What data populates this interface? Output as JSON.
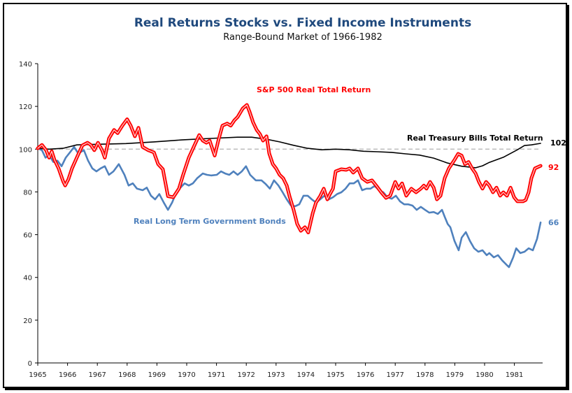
{
  "chart_data": {
    "type": "line",
    "title": "Real Returns Stocks vs. Fixed Income Instruments",
    "subtitle": "Range-Bound Market of 1966-1982",
    "xlabel": "",
    "ylabel": "",
    "ylim": [
      0,
      140
    ],
    "xlim": [
      1965,
      1981.88
    ],
    "y_ticks": [
      "0",
      "20",
      "40",
      "60",
      "80",
      "100",
      "120",
      "140"
    ],
    "x_ticks": [
      "1965",
      "1966",
      "1967",
      "1968",
      "1969",
      "1970",
      "1971",
      "1972",
      "1973",
      "1974",
      "1975",
      "1976",
      "1977",
      "1978",
      "1979",
      "1980",
      "1981"
    ],
    "grid": false,
    "reference_line": {
      "y": 100,
      "style": "dashed",
      "color": "#b0b0b0"
    },
    "colors": {
      "sp500": "#ff0000",
      "bonds": "#4f81bd",
      "tbills": "#000000",
      "title": "#1f497d"
    },
    "series": [
      {
        "name": "S&P 500 Real Total Return",
        "key": "sp500",
        "end_label": "92",
        "points": [
          [
            1965.0,
            100.4
          ],
          [
            1965.14,
            102
          ],
          [
            1965.28,
            99.5
          ],
          [
            1965.38,
            96
          ],
          [
            1965.47,
            99
          ],
          [
            1965.56,
            95
          ],
          [
            1965.7,
            91
          ],
          [
            1965.85,
            85
          ],
          [
            1965.92,
            83
          ],
          [
            1966.03,
            86
          ],
          [
            1966.15,
            91
          ],
          [
            1966.31,
            96
          ],
          [
            1966.5,
            101.8
          ],
          [
            1966.67,
            103
          ],
          [
            1966.78,
            102
          ],
          [
            1966.9,
            99.5
          ],
          [
            1967.02,
            103
          ],
          [
            1967.16,
            99.5
          ],
          [
            1967.25,
            96
          ],
          [
            1967.39,
            105
          ],
          [
            1967.56,
            109
          ],
          [
            1967.68,
            107.5
          ],
          [
            1967.84,
            111
          ],
          [
            1968.0,
            114
          ],
          [
            1968.12,
            111
          ],
          [
            1968.26,
            106
          ],
          [
            1968.38,
            110
          ],
          [
            1968.52,
            101
          ],
          [
            1968.71,
            99.5
          ],
          [
            1968.9,
            98.5
          ],
          [
            1969.04,
            93
          ],
          [
            1969.2,
            90.6
          ],
          [
            1969.37,
            78
          ],
          [
            1969.55,
            77.5
          ],
          [
            1969.74,
            81.5
          ],
          [
            1969.88,
            88
          ],
          [
            1970.07,
            96
          ],
          [
            1970.26,
            101.8
          ],
          [
            1970.42,
            106.6
          ],
          [
            1970.54,
            104
          ],
          [
            1970.66,
            103
          ],
          [
            1970.77,
            104
          ],
          [
            1970.94,
            97
          ],
          [
            1971.06,
            104
          ],
          [
            1971.2,
            111
          ],
          [
            1971.36,
            112
          ],
          [
            1971.48,
            111
          ],
          [
            1971.6,
            113.5
          ],
          [
            1971.71,
            115
          ],
          [
            1971.88,
            119
          ],
          [
            1972.02,
            120.7
          ],
          [
            1972.11,
            117.5
          ],
          [
            1972.23,
            112.5
          ],
          [
            1972.35,
            109
          ],
          [
            1972.46,
            107
          ],
          [
            1972.56,
            104
          ],
          [
            1972.68,
            106
          ],
          [
            1972.77,
            98
          ],
          [
            1972.89,
            93
          ],
          [
            1973.0,
            91
          ],
          [
            1973.12,
            88
          ],
          [
            1973.24,
            86.4
          ],
          [
            1973.36,
            83
          ],
          [
            1973.45,
            78
          ],
          [
            1973.59,
            71.6
          ],
          [
            1973.71,
            65
          ],
          [
            1973.83,
            61.8
          ],
          [
            1973.97,
            63.5
          ],
          [
            1974.08,
            61
          ],
          [
            1974.23,
            70
          ],
          [
            1974.34,
            75
          ],
          [
            1974.48,
            78
          ],
          [
            1974.6,
            81.5
          ],
          [
            1974.72,
            76.5
          ],
          [
            1974.81,
            79
          ],
          [
            1974.91,
            81.5
          ],
          [
            1975.0,
            89.6
          ],
          [
            1975.19,
            90.6
          ],
          [
            1975.35,
            90.3
          ],
          [
            1975.47,
            91
          ],
          [
            1975.59,
            89
          ],
          [
            1975.75,
            91
          ],
          [
            1975.89,
            86.4
          ],
          [
            1976.06,
            84.7
          ],
          [
            1976.22,
            85.4
          ],
          [
            1976.36,
            83
          ],
          [
            1976.53,
            79.8
          ],
          [
            1976.69,
            77.2
          ],
          [
            1976.83,
            78.2
          ],
          [
            1977.0,
            84.7
          ],
          [
            1977.11,
            81.5
          ],
          [
            1977.23,
            84
          ],
          [
            1977.37,
            78.2
          ],
          [
            1977.54,
            81.5
          ],
          [
            1977.7,
            79.8
          ],
          [
            1977.86,
            81.5
          ],
          [
            1977.96,
            83
          ],
          [
            1978.05,
            81.5
          ],
          [
            1978.17,
            84.7
          ],
          [
            1978.29,
            82
          ],
          [
            1978.4,
            76.5
          ],
          [
            1978.52,
            78.2
          ],
          [
            1978.66,
            86.4
          ],
          [
            1978.8,
            91
          ],
          [
            1978.99,
            95
          ],
          [
            1979.11,
            97.8
          ],
          [
            1979.23,
            97
          ],
          [
            1979.34,
            93
          ],
          [
            1979.46,
            94
          ],
          [
            1979.58,
            91
          ],
          [
            1979.7,
            88.6
          ],
          [
            1979.81,
            84.7
          ],
          [
            1979.93,
            81.5
          ],
          [
            1980.05,
            84.7
          ],
          [
            1980.16,
            83
          ],
          [
            1980.28,
            79.8
          ],
          [
            1980.4,
            82
          ],
          [
            1980.52,
            78.2
          ],
          [
            1980.63,
            79.8
          ],
          [
            1980.75,
            78.2
          ],
          [
            1980.87,
            82
          ],
          [
            1980.99,
            77.5
          ],
          [
            1981.1,
            75.6
          ],
          [
            1981.29,
            75.6
          ],
          [
            1981.38,
            76.2
          ],
          [
            1981.48,
            79.8
          ],
          [
            1981.57,
            86.4
          ],
          [
            1981.69,
            91
          ],
          [
            1981.88,
            92.2
          ]
        ]
      },
      {
        "name": "Real Treasury Bills Total Return",
        "key": "tbills",
        "end_label": "102",
        "points": [
          [
            1965.0,
            100.4
          ],
          [
            1965.38,
            100
          ],
          [
            1965.85,
            100.4
          ],
          [
            1966.31,
            102
          ],
          [
            1967.02,
            102.3
          ],
          [
            1967.96,
            102.6
          ],
          [
            1968.9,
            103.4
          ],
          [
            1969.83,
            104.3
          ],
          [
            1970.77,
            105
          ],
          [
            1971.71,
            105.6
          ],
          [
            1972.18,
            105.6
          ],
          [
            1972.65,
            104.7
          ],
          [
            1973.12,
            103.4
          ],
          [
            1973.59,
            101.8
          ],
          [
            1974.06,
            100.4
          ],
          [
            1974.53,
            99.7
          ],
          [
            1975.0,
            100
          ],
          [
            1975.47,
            99.7
          ],
          [
            1975.94,
            99
          ],
          [
            1976.41,
            98.8
          ],
          [
            1976.88,
            98.5
          ],
          [
            1977.35,
            97.8
          ],
          [
            1977.82,
            97.2
          ],
          [
            1978.29,
            95.8
          ],
          [
            1978.76,
            93.5
          ],
          [
            1979.23,
            92
          ],
          [
            1979.7,
            91.3
          ],
          [
            1979.93,
            92.2
          ],
          [
            1980.16,
            93.8
          ],
          [
            1980.63,
            96.2
          ],
          [
            1981.1,
            99.7
          ],
          [
            1981.34,
            101.7
          ],
          [
            1981.57,
            102
          ],
          [
            1981.88,
            102.7
          ]
        ]
      },
      {
        "name": "Real Long Term Government Bonds",
        "key": "bonds",
        "end_label": "66",
        "points": [
          [
            1965.0,
            100.4
          ],
          [
            1965.14,
            99.5
          ],
          [
            1965.26,
            96
          ],
          [
            1965.38,
            97.3
          ],
          [
            1965.52,
            94
          ],
          [
            1965.66,
            94.6
          ],
          [
            1965.8,
            92
          ],
          [
            1965.94,
            96
          ],
          [
            1966.08,
            98.5
          ],
          [
            1966.22,
            101
          ],
          [
            1966.36,
            98
          ],
          [
            1966.55,
            99.5
          ],
          [
            1966.69,
            94.6
          ],
          [
            1966.83,
            91
          ],
          [
            1966.97,
            89.6
          ],
          [
            1967.11,
            91
          ],
          [
            1967.25,
            92
          ],
          [
            1967.39,
            88
          ],
          [
            1967.54,
            89.6
          ],
          [
            1967.72,
            93
          ],
          [
            1967.91,
            88
          ],
          [
            1968.05,
            83
          ],
          [
            1968.19,
            84
          ],
          [
            1968.33,
            81.5
          ],
          [
            1968.52,
            80.8
          ],
          [
            1968.66,
            82
          ],
          [
            1968.8,
            78.2
          ],
          [
            1968.94,
            76.5
          ],
          [
            1969.08,
            79
          ],
          [
            1969.23,
            75
          ],
          [
            1969.37,
            71.6
          ],
          [
            1969.51,
            75
          ],
          [
            1969.65,
            79.8
          ],
          [
            1969.79,
            82
          ],
          [
            1969.93,
            84
          ],
          [
            1970.07,
            83
          ],
          [
            1970.21,
            84
          ],
          [
            1970.35,
            86.4
          ],
          [
            1970.54,
            88.6
          ],
          [
            1970.68,
            88
          ],
          [
            1970.82,
            87.7
          ],
          [
            1971.01,
            88
          ],
          [
            1971.15,
            89.6
          ],
          [
            1971.29,
            88.6
          ],
          [
            1971.43,
            88
          ],
          [
            1971.57,
            89.6
          ],
          [
            1971.71,
            88
          ],
          [
            1971.85,
            89.6
          ],
          [
            1971.99,
            92
          ],
          [
            1972.13,
            88
          ],
          [
            1972.32,
            85.4
          ],
          [
            1972.51,
            85.4
          ],
          [
            1972.65,
            83.7
          ],
          [
            1972.79,
            81.5
          ],
          [
            1972.93,
            85.4
          ],
          [
            1973.08,
            83
          ],
          [
            1973.22,
            79.8
          ],
          [
            1973.36,
            76.5
          ],
          [
            1973.5,
            73.6
          ],
          [
            1973.64,
            73.3
          ],
          [
            1973.78,
            74.2
          ],
          [
            1973.92,
            78.2
          ],
          [
            1974.06,
            78.2
          ],
          [
            1974.2,
            76.5
          ],
          [
            1974.34,
            75
          ],
          [
            1974.48,
            76.5
          ],
          [
            1974.62,
            78.2
          ],
          [
            1974.77,
            76.5
          ],
          [
            1974.91,
            77.5
          ],
          [
            1975.05,
            79
          ],
          [
            1975.19,
            79.8
          ],
          [
            1975.33,
            81.5
          ],
          [
            1975.47,
            84
          ],
          [
            1975.61,
            84
          ],
          [
            1975.75,
            85.4
          ],
          [
            1975.89,
            80.8
          ],
          [
            1976.03,
            81.5
          ],
          [
            1976.17,
            81.5
          ],
          [
            1976.31,
            82.8
          ],
          [
            1976.46,
            80.8
          ],
          [
            1976.6,
            79.8
          ],
          [
            1976.74,
            77.5
          ],
          [
            1976.88,
            76.8
          ],
          [
            1977.02,
            78.2
          ],
          [
            1977.16,
            75.6
          ],
          [
            1977.3,
            74.2
          ],
          [
            1977.44,
            74.2
          ],
          [
            1977.58,
            73.6
          ],
          [
            1977.72,
            71.6
          ],
          [
            1977.86,
            73
          ],
          [
            1978.0,
            71.6
          ],
          [
            1978.14,
            70.3
          ],
          [
            1978.29,
            70.6
          ],
          [
            1978.43,
            69.7
          ],
          [
            1978.57,
            71.6
          ],
          [
            1978.66,
            68.4
          ],
          [
            1978.76,
            65
          ],
          [
            1978.85,
            63.5
          ],
          [
            1978.99,
            57
          ],
          [
            1979.13,
            52.7
          ],
          [
            1979.23,
            58.6
          ],
          [
            1979.37,
            61.2
          ],
          [
            1979.51,
            57
          ],
          [
            1979.65,
            53.6
          ],
          [
            1979.79,
            52
          ],
          [
            1979.93,
            52.7
          ],
          [
            1980.07,
            50.4
          ],
          [
            1980.16,
            51.4
          ],
          [
            1980.31,
            49.4
          ],
          [
            1980.45,
            50.4
          ],
          [
            1980.59,
            48
          ],
          [
            1980.73,
            46
          ],
          [
            1980.82,
            44.8
          ],
          [
            1980.96,
            49.4
          ],
          [
            1981.06,
            53.6
          ],
          [
            1981.2,
            51.4
          ],
          [
            1981.34,
            52
          ],
          [
            1981.48,
            53.6
          ],
          [
            1981.62,
            52.7
          ],
          [
            1981.76,
            58
          ],
          [
            1981.88,
            65.7
          ]
        ]
      }
    ],
    "annotations": [
      {
        "text": "S&P 500 Real Total Return",
        "series": "sp500"
      },
      {
        "text": "Real Treasury Bills Total Return",
        "series": "tbills"
      },
      {
        "text": "Real Long Term Government Bonds",
        "series": "bonds"
      }
    ]
  }
}
